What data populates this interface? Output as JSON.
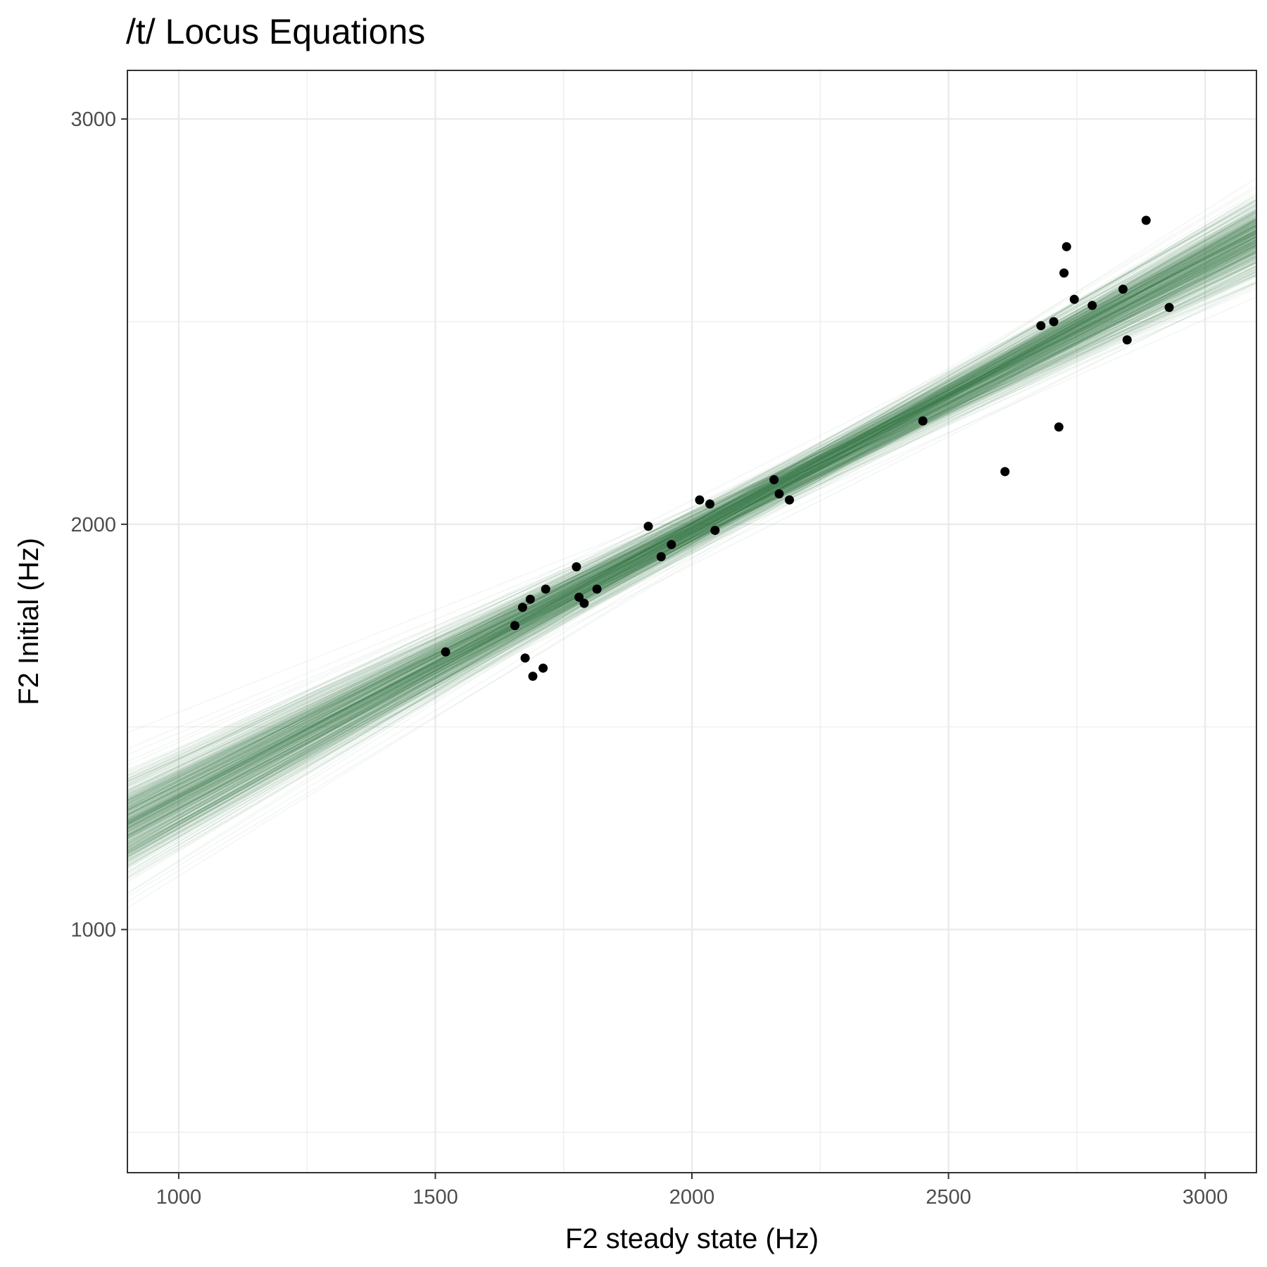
{
  "chart_data": {
    "type": "scatter",
    "title": "/t/ Locus Equations",
    "xlabel": "F2 steady state (Hz)",
    "ylabel": "F2 Initial (Hz)",
    "xlim": [
      900,
      3100
    ],
    "ylim": [
      400,
      3120
    ],
    "x_ticks": [
      1000,
      1500,
      2000,
      2500,
      3000
    ],
    "y_ticks": [
      1000,
      2000,
      3000
    ],
    "x_tick_labels": [
      "1000",
      "1500",
      "2000",
      "2500",
      "3000"
    ],
    "y_tick_labels": [
      "1000",
      "2000",
      "3000"
    ],
    "grid": true,
    "legend": "none",
    "colors": {
      "lines": "#2e7d45",
      "points": "#000000",
      "panel_border": "#333333",
      "grid": "#ebebeb"
    },
    "regression": {
      "slope": 0.66,
      "intercept": 663,
      "slope_sd": 0.045,
      "samples": 600
    },
    "points": [
      {
        "x": 1520,
        "y": 1685
      },
      {
        "x": 1655,
        "y": 1750
      },
      {
        "x": 1670,
        "y": 1795
      },
      {
        "x": 1675,
        "y": 1670
      },
      {
        "x": 1685,
        "y": 1815
      },
      {
        "x": 1690,
        "y": 1625
      },
      {
        "x": 1710,
        "y": 1645
      },
      {
        "x": 1715,
        "y": 1840
      },
      {
        "x": 1775,
        "y": 1895
      },
      {
        "x": 1780,
        "y": 1820
      },
      {
        "x": 1790,
        "y": 1805
      },
      {
        "x": 1815,
        "y": 1840
      },
      {
        "x": 1915,
        "y": 1995
      },
      {
        "x": 1940,
        "y": 1920
      },
      {
        "x": 1960,
        "y": 1950
      },
      {
        "x": 2015,
        "y": 2060
      },
      {
        "x": 2035,
        "y": 2050
      },
      {
        "x": 2045,
        "y": 1985
      },
      {
        "x": 2160,
        "y": 2110
      },
      {
        "x": 2170,
        "y": 2075
      },
      {
        "x": 2190,
        "y": 2060
      },
      {
        "x": 2450,
        "y": 2255
      },
      {
        "x": 2610,
        "y": 2130
      },
      {
        "x": 2680,
        "y": 2490
      },
      {
        "x": 2705,
        "y": 2500
      },
      {
        "x": 2715,
        "y": 2240
      },
      {
        "x": 2725,
        "y": 2620
      },
      {
        "x": 2730,
        "y": 2685
      },
      {
        "x": 2745,
        "y": 2555
      },
      {
        "x": 2780,
        "y": 2540
      },
      {
        "x": 2840,
        "y": 2580
      },
      {
        "x": 2848,
        "y": 2455
      },
      {
        "x": 2885,
        "y": 2750
      },
      {
        "x": 2930,
        "y": 2535
      }
    ]
  }
}
